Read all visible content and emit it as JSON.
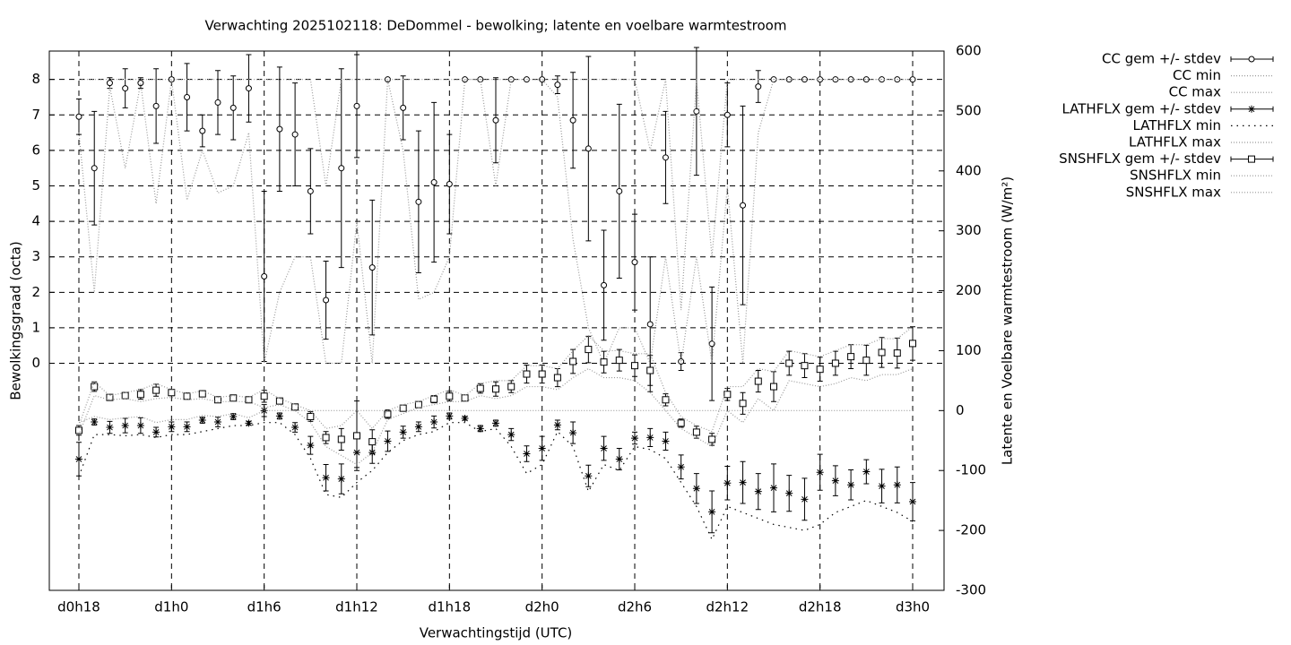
{
  "chart_data": {
    "type": "errorbar",
    "title": "Verwachting 2025102118: DeDommel - bewolking; latente en voelbare warmtestroom",
    "xlabel": "Verwachtingstijd (UTC)",
    "ylabel": "Bewolkingsgraad (octa)",
    "y2label": "Latente en Voelbare warmtestroom (W/m²)",
    "categories": [
      "d0h18",
      null,
      null,
      null,
      null,
      null,
      "d1h0",
      null,
      null,
      null,
      null,
      null,
      "d1h6",
      null,
      null,
      null,
      null,
      null,
      "d1h12",
      null,
      null,
      null,
      null,
      null,
      "d1h18",
      null,
      null,
      null,
      null,
      null,
      "d2h0",
      null,
      null,
      null,
      null,
      null,
      "d2h6",
      null,
      null,
      null,
      null,
      null,
      "d2h12",
      null,
      null,
      null,
      null,
      null,
      "d2h18",
      null,
      null,
      null,
      null,
      null,
      "d3h0"
    ],
    "ylim": [
      -6.4,
      8.8
    ],
    "yticks": [
      0,
      1,
      2,
      3,
      4,
      5,
      6,
      7,
      8
    ],
    "y2lim": [
      -300,
      600
    ],
    "y2ticks": [
      -300,
      -200,
      -100,
      0,
      100,
      200,
      300,
      400,
      500,
      600
    ],
    "grid": true,
    "legend": "outside-right",
    "series": [
      {
        "name": "CC gem +/- stdev",
        "axis": "y",
        "marker": "circle",
        "line_style": "errorbar",
        "color": "#000000",
        "values": [
          6.95,
          5.5,
          7.9,
          7.75,
          7.9,
          7.25,
          8.0,
          7.5,
          6.55,
          7.35,
          7.2,
          7.75,
          2.45,
          6.6,
          6.45,
          4.85,
          1.78,
          5.5,
          7.25,
          2.7,
          8.0,
          7.2,
          4.55,
          5.1,
          5.05,
          8.0,
          8.0,
          6.85,
          8.0,
          8.0,
          8.0,
          7.85,
          6.85,
          6.05,
          2.2,
          4.85,
          2.85,
          1.1,
          5.8,
          0.05,
          7.1,
          0.55,
          7.0,
          4.45,
          7.8,
          8,
          8,
          8,
          8,
          8,
          8,
          8,
          8,
          8,
          8
        ],
        "errors": [
          0.5,
          1.6,
          0.15,
          0.55,
          0.15,
          1.05,
          0.05,
          0.95,
          0.45,
          0.9,
          0.9,
          0.95,
          2.4,
          1.75,
          1.45,
          1.2,
          1.1,
          2.8,
          1.45,
          1.9,
          0,
          0.9,
          2.0,
          2.25,
          1.4,
          0,
          0,
          1.2,
          0,
          0,
          0,
          0.25,
          1.35,
          2.6,
          1.55,
          2.45,
          1.35,
          1.9,
          1.3,
          0.25,
          1.8,
          1.6,
          0.9,
          2.8,
          0.45,
          0,
          0,
          0,
          0,
          0,
          0,
          0,
          0,
          0,
          0
        ]
      },
      {
        "name": "CC min",
        "axis": "y",
        "line_style": "dotted",
        "color": "#999999",
        "values": [
          6.5,
          2.0,
          7.8,
          5.5,
          7.9,
          4.5,
          8,
          4.6,
          6,
          4.8,
          5,
          6.5,
          0,
          2,
          3,
          3,
          0,
          0,
          4,
          0,
          8,
          6,
          1.8,
          2,
          3,
          8,
          8,
          5,
          8,
          8,
          8,
          7.5,
          3.5,
          1,
          0,
          1,
          1,
          0,
          3,
          0,
          3,
          0,
          5,
          0,
          6.5,
          8,
          8,
          8,
          8,
          8,
          8,
          8,
          8,
          8,
          8
        ]
      },
      {
        "name": "CC max",
        "axis": "y",
        "line_style": "dotted",
        "color": "#999999",
        "values": [
          8,
          8,
          8,
          8,
          8,
          8,
          8,
          8,
          8,
          8,
          8,
          8,
          8,
          8,
          8,
          8,
          5,
          8,
          8,
          8,
          8,
          8,
          8,
          8,
          8,
          8,
          8,
          8,
          8,
          8,
          8,
          8,
          8,
          8,
          8,
          8,
          8,
          6,
          8,
          1.5,
          8,
          3,
          8,
          8,
          8,
          8,
          8,
          8,
          8,
          8,
          8,
          8,
          8,
          8,
          8
        ]
      },
      {
        "name": "LATHFLX gem +/- stdev",
        "axis": "y2",
        "marker": "star",
        "line_style": "errorbar",
        "color": "#000000",
        "values": [
          -81,
          -19,
          -28,
          -25,
          -25,
          -36,
          -27,
          -27,
          -16,
          -19,
          -10,
          -21,
          0,
          -9,
          -28,
          -58,
          -112,
          -114,
          -70,
          -70,
          -51,
          -36,
          -27,
          -19,
          -9,
          -13,
          -30,
          -21,
          -40,
          -72,
          -63,
          -24,
          -37,
          -109,
          -63,
          -81,
          -46,
          -45,
          -51,
          -94,
          -130,
          -169,
          -121,
          -120,
          -135,
          -129,
          -138,
          -148,
          -103,
          -117,
          -124,
          -102,
          -126,
          -124,
          -152
        ],
        "errors": [
          28,
          5,
          10,
          12,
          13,
          8,
          8,
          8,
          5,
          8,
          5,
          3,
          10,
          5,
          8,
          15,
          22,
          25,
          25,
          18,
          17,
          10,
          8,
          10,
          5,
          3,
          5,
          5,
          10,
          13,
          20,
          8,
          18,
          18,
          20,
          18,
          10,
          15,
          15,
          20,
          25,
          35,
          28,
          35,
          30,
          40,
          30,
          35,
          30,
          25,
          25,
          20,
          28,
          30,
          32
        ]
      },
      {
        "name": "LATHFLX min",
        "axis": "y2",
        "line_style": "sparse-dotted",
        "color": "#000000",
        "values": [
          -110,
          -40,
          -40,
          -42,
          -40,
          -45,
          -40,
          -40,
          -35,
          -30,
          -25,
          -25,
          -20,
          -20,
          -40,
          -80,
          -140,
          -145,
          -120,
          -100,
          -70,
          -50,
          -40,
          -35,
          -20,
          -20,
          -35,
          -30,
          -60,
          -105,
          -90,
          -35,
          -60,
          -135,
          -90,
          -100,
          -60,
          -65,
          -80,
          -120,
          -160,
          -215,
          -160,
          -170,
          -180,
          -190,
          -195,
          -200,
          -190,
          -170,
          -160,
          -150,
          -160,
          -170,
          -185
        ]
      },
      {
        "name": "LATHFLX max",
        "axis": "y2",
        "line_style": "dotted",
        "color": "#999999",
        "values": [
          -20,
          -10,
          -15,
          -12,
          -10,
          -20,
          -15,
          -15,
          -8,
          -10,
          -5,
          -12,
          0,
          0,
          0,
          0,
          0,
          0,
          0,
          0,
          0,
          0,
          0,
          0,
          0,
          0,
          0,
          0,
          0,
          0,
          0,
          0,
          0,
          0,
          0,
          0,
          0,
          0,
          0,
          0,
          0,
          0,
          0,
          0,
          0,
          0,
          0,
          0,
          0,
          0,
          0,
          0,
          0,
          0,
          0
        ]
      },
      {
        "name": "SNSHFLX gem +/- stdev",
        "axis": "y2",
        "marker": "square",
        "line_style": "errorbar",
        "color": "#000000",
        "values": [
          -33,
          40,
          22,
          25,
          27,
          34,
          30,
          24,
          28,
          18,
          21,
          18,
          24,
          16,
          6,
          -10,
          -45,
          -48,
          -42,
          -52,
          -6,
          4,
          10,
          19,
          24,
          21,
          37,
          36,
          40,
          61,
          61,
          55,
          82,
          102,
          81,
          84,
          75,
          67,
          18,
          -21,
          -36,
          -48,
          27,
          12,
          49,
          40,
          79,
          75,
          69,
          79,
          90,
          84,
          97,
          96,
          112
        ],
        "errors": [
          8,
          8,
          3,
          5,
          8,
          10,
          5,
          5,
          5,
          3,
          3,
          3,
          10,
          3,
          3,
          8,
          10,
          18,
          58,
          20,
          7,
          5,
          3,
          6,
          8,
          3,
          8,
          12,
          10,
          15,
          15,
          15,
          20,
          22,
          18,
          18,
          18,
          25,
          10,
          7,
          10,
          10,
          10,
          18,
          18,
          25,
          20,
          20,
          20,
          20,
          20,
          25,
          25,
          25,
          28
        ]
      },
      {
        "name": "SNSHFLX min",
        "axis": "y2",
        "line_style": "dotted",
        "color": "#999999",
        "values": [
          -40,
          25,
          18,
          20,
          15,
          20,
          22,
          18,
          20,
          15,
          15,
          15,
          5,
          10,
          0,
          -20,
          -60,
          -75,
          -90,
          -70,
          -15,
          -5,
          5,
          10,
          15,
          15,
          25,
          20,
          25,
          40,
          40,
          35,
          55,
          70,
          55,
          55,
          50,
          30,
          0,
          -30,
          -45,
          -60,
          0,
          -20,
          20,
          0,
          50,
          45,
          40,
          45,
          55,
          50,
          60,
          60,
          70
        ]
      },
      {
        "name": "SNSHFLX max",
        "axis": "y2",
        "line_style": "dotted",
        "color": "#999999",
        "values": [
          -25,
          48,
          25,
          30,
          35,
          45,
          35,
          28,
          33,
          22,
          25,
          22,
          35,
          20,
          10,
          0,
          -30,
          -25,
          0,
          -30,
          0,
          10,
          15,
          25,
          35,
          25,
          45,
          50,
          50,
          75,
          75,
          70,
          100,
          125,
          100,
          100,
          95,
          95,
          30,
          -10,
          -25,
          -35,
          40,
          40,
          70,
          65,
          100,
          95,
          90,
          100,
          110,
          110,
          120,
          120,
          140
        ]
      }
    ]
  }
}
